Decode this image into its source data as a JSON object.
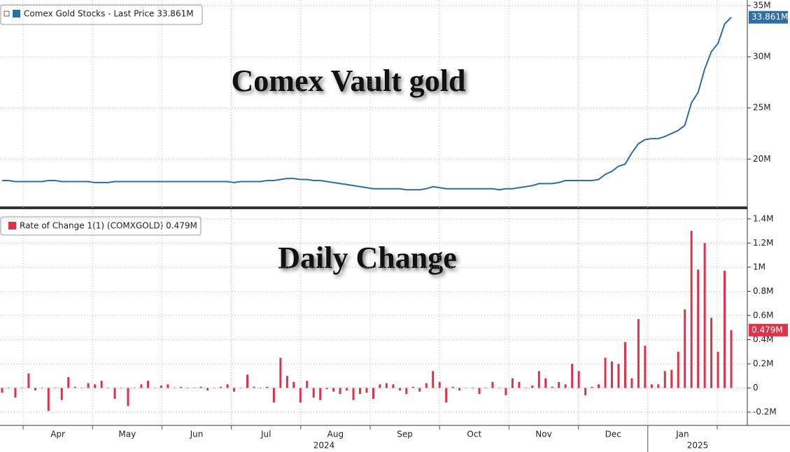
{
  "chart_data": [
    {
      "type": "line",
      "title": "Comex Vault gold",
      "series": [
        {
          "name": "Comex Gold Stocks - Last Price 33.861M",
          "color": "#2f6ea0",
          "last_label": "33.861M",
          "values": [
            17.9,
            17.9,
            17.8,
            17.8,
            17.8,
            17.8,
            17.8,
            17.9,
            17.9,
            17.8,
            17.8,
            17.8,
            17.8,
            17.8,
            17.7,
            17.7,
            17.7,
            17.8,
            17.8,
            17.8,
            17.8,
            17.8,
            17.8,
            17.8,
            17.8,
            17.8,
            17.8,
            17.8,
            17.8,
            17.8,
            17.8,
            17.8,
            17.8,
            17.8,
            17.8,
            17.7,
            17.8,
            17.8,
            17.8,
            17.8,
            17.9,
            17.9,
            18.0,
            18.1,
            18.1,
            18.0,
            18.0,
            17.9,
            17.9,
            17.8,
            17.7,
            17.6,
            17.5,
            17.4,
            17.3,
            17.2,
            17.1,
            17.1,
            17.1,
            17.1,
            17.1,
            17.0,
            17.0,
            17.0,
            17.1,
            17.3,
            17.2,
            17.1,
            17.1,
            17.1,
            17.1,
            17.1,
            17.1,
            17.1,
            17.1,
            17.0,
            17.1,
            17.1,
            17.2,
            17.3,
            17.4,
            17.6,
            17.6,
            17.6,
            17.7,
            17.9,
            17.9,
            17.9,
            17.9,
            17.9,
            18.0,
            18.5,
            18.8,
            19.3,
            19.5,
            20.6,
            21.5,
            21.9,
            22.0,
            22.0,
            22.2,
            22.5,
            22.8,
            23.3,
            25.5,
            26.5,
            28.8,
            30.5,
            31.3,
            33.2,
            33.861
          ]
        }
      ],
      "ylim": [
        15.3,
        35.55
      ],
      "yticks": [
        {
          "value": 20,
          "label": "20M"
        },
        {
          "value": 25,
          "label": "25M"
        },
        {
          "value": 30,
          "label": "30M"
        },
        {
          "value": 35,
          "label": "35M"
        }
      ],
      "grid": true
    },
    {
      "type": "bar",
      "title": "Daily Change",
      "series": [
        {
          "name": "Rate of Change 1(1) (COMXGOLD) 0.479M",
          "color": "#e0314b",
          "last_label": "0.479M",
          "values": [
            -0.04,
            0,
            -0.08,
            0,
            0.12,
            -0.02,
            0,
            -0.19,
            0,
            -0.1,
            0.09,
            0.01,
            0,
            0.04,
            0.03,
            0.06,
            0,
            -0.09,
            0,
            -0.15,
            0,
            0.03,
            0.06,
            0,
            0.02,
            0.03,
            0,
            0.01,
            0,
            0,
            0.01,
            -0.02,
            0,
            0.01,
            0.03,
            -0.03,
            0,
            0.11,
            0.01,
            0,
            0.01,
            -0.12,
            0.25,
            0.1,
            0.05,
            -0.12,
            0.06,
            -0.08,
            -0.1,
            -0.01,
            -0.03,
            -0.05,
            -0.02,
            -0.1,
            -0.05,
            -0.04,
            -0.09,
            0.03,
            0.04,
            0.03,
            -0.02,
            -0.05,
            0.01,
            -0.03,
            0.04,
            0.14,
            0.05,
            -0.12,
            0.01,
            -0.02,
            0,
            0,
            -0.05,
            0,
            0.05,
            0,
            -0.06,
            0.08,
            0.05,
            0,
            0.02,
            0.14,
            0.08,
            0.01,
            0.05,
            0.03,
            0.2,
            0.14,
            -0.06,
            0.01,
            0.03,
            0.25,
            0.22,
            0.2,
            0.38,
            0.08,
            0.57,
            0.35,
            0.03,
            0.03,
            0.14,
            0.15,
            0.3,
            0.65,
            1.3,
            0.98,
            1.2,
            0.58,
            0.3,
            0.97,
            0.479
          ]
        }
      ],
      "ylim": [
        -0.31,
        1.48
      ],
      "yticks": [
        {
          "value": -0.2,
          "label": "-0.2M"
        },
        0,
        {
          "value": 0.2,
          "label": "0.2M"
        },
        {
          "value": 0.4,
          "label": "0.4M"
        },
        {
          "value": 0.6,
          "label": "0.6M"
        },
        {
          "value": 0.8,
          "label": "0.8M"
        },
        {
          "value": 1,
          "label": "1M"
        },
        {
          "value": 1.2,
          "label": "1.2M"
        },
        {
          "value": 1.4,
          "label": "1.4M"
        }
      ],
      "grid": true,
      "month_labels": [
        "Apr",
        "May",
        "Jun",
        "Jul",
        "Aug",
        "Sep",
        "Oct",
        "Nov",
        "Dec",
        "Jan"
      ],
      "year_labels": [
        "2024",
        "2025"
      ]
    }
  ]
}
